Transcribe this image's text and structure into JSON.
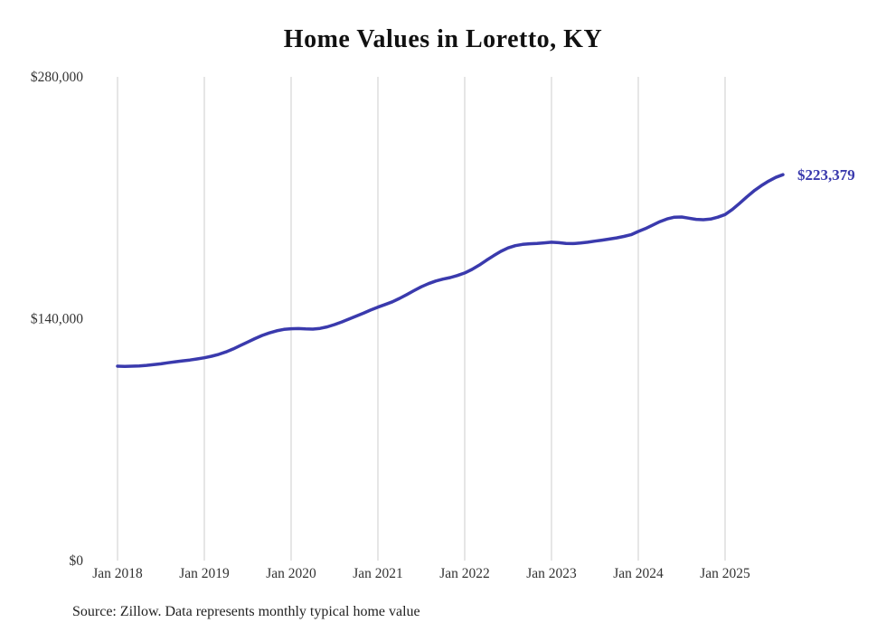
{
  "chart_data": {
    "type": "line",
    "title": "Home Values in Loretto, KY",
    "source_note": "Source: Zillow. Data represents monthly typical home value",
    "latest_value_label": "$223,379",
    "accent_color": "#3a3aad",
    "gridline_color": "#cccccc",
    "grid": "vertical-only",
    "legend": "none",
    "ylim": [
      0,
      280000
    ],
    "y_ticks": [
      {
        "value": 0,
        "label": "$0"
      },
      {
        "value": 140000,
        "label": "$140,000"
      },
      {
        "value": 280000,
        "label": "$280,000"
      }
    ],
    "x_tick_labels": [
      "Jan 2018",
      "Jan 2019",
      "Jan 2020",
      "Jan 2021",
      "Jan 2022",
      "Jan 2023",
      "Jan 2024",
      "Jan 2025"
    ],
    "x_start": "2018-01",
    "frequency": "monthly",
    "series": [
      {
        "name": "Typical home value (USD)",
        "values": [
          112500,
          112400,
          112500,
          112700,
          113000,
          113400,
          113900,
          114500,
          115100,
          115600,
          116100,
          116700,
          117400,
          118300,
          119400,
          120800,
          122500,
          124500,
          126500,
          128500,
          130300,
          131800,
          133000,
          133800,
          134200,
          134300,
          134100,
          134000,
          134400,
          135300,
          136600,
          138100,
          139800,
          141500,
          143200,
          145000,
          146700,
          148200,
          149800,
          151800,
          154000,
          156300,
          158500,
          160300,
          161800,
          162900,
          163800,
          165000,
          166500,
          168500,
          171000,
          173800,
          176500,
          179000,
          181000,
          182300,
          183000,
          183400,
          183600,
          183900,
          184300,
          184000,
          183600,
          183500,
          183800,
          184300,
          184900,
          185500,
          186100,
          186800,
          187600,
          188600,
          190500,
          192200,
          194200,
          196200,
          197800,
          198800,
          198900,
          198200,
          197500,
          197300,
          197700,
          198800,
          200300,
          203200,
          206800,
          210500,
          214000,
          217000,
          219600,
          221800,
          223379
        ]
      }
    ]
  }
}
